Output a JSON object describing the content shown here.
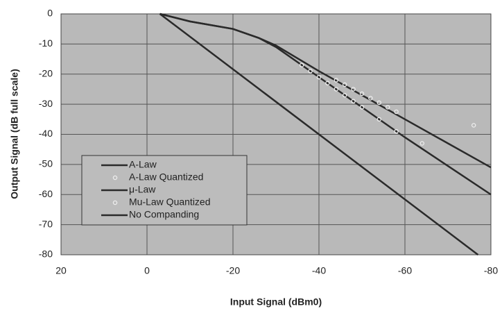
{
  "chart_data": {
    "type": "line",
    "x_label": "Input Signal (dBm0)",
    "y_label": "Output Signal (dB full scale)",
    "xlim": [
      20,
      -80
    ],
    "ylim": [
      -80,
      0
    ],
    "xticks": [
      20,
      0,
      -20,
      -40,
      -60,
      -80
    ],
    "yticks": [
      0,
      -10,
      -20,
      -30,
      -40,
      -50,
      -60,
      -70,
      -80
    ],
    "grid": true,
    "legend": "lower left",
    "series": [
      {
        "name": "A-Law",
        "color": "#2a2a2a",
        "style": "line",
        "x": [
          -3,
          -10,
          -20,
          -26,
          -30,
          -40,
          -50,
          -60,
          -70,
          -80
        ],
        "values": [
          0,
          -2.5,
          -5,
          -8,
          -10.5,
          -19,
          -27,
          -35,
          -43,
          -51
        ]
      },
      {
        "name": "A-Law Quantized",
        "color": "#2a2a2a",
        "style": "circle",
        "x": [
          -44,
          -46,
          -48,
          -50,
          -52,
          -54,
          -56,
          -58,
          -76
        ],
        "values": [
          -22,
          -23.5,
          -25,
          -26.5,
          -28,
          -29.5,
          -31,
          -32.5,
          -37
        ]
      },
      {
        "name": "μ-Law",
        "color": "#2a2a2a",
        "style": "line",
        "x": [
          -3,
          -10,
          -20,
          -26,
          -30,
          -40,
          -50,
          -60,
          -70,
          -80
        ],
        "values": [
          0,
          -2.5,
          -5,
          -8,
          -11,
          -21,
          -31,
          -41,
          -50.5,
          -60
        ]
      },
      {
        "name": "Mu-Law Quantized",
        "color": "#2a2a2a",
        "style": "circle",
        "x": [
          -36,
          -38,
          -40,
          -42,
          -44,
          -46,
          -48,
          -50,
          -54,
          -58,
          -64
        ],
        "values": [
          -17,
          -19,
          -21,
          -23,
          -25,
          -27,
          -29,
          -31,
          -35,
          -39,
          -43
        ]
      },
      {
        "name": "No Companding",
        "color": "#2a2a2a",
        "style": "line",
        "x": [
          -3,
          -77
        ],
        "values": [
          0,
          -80
        ]
      }
    ]
  }
}
